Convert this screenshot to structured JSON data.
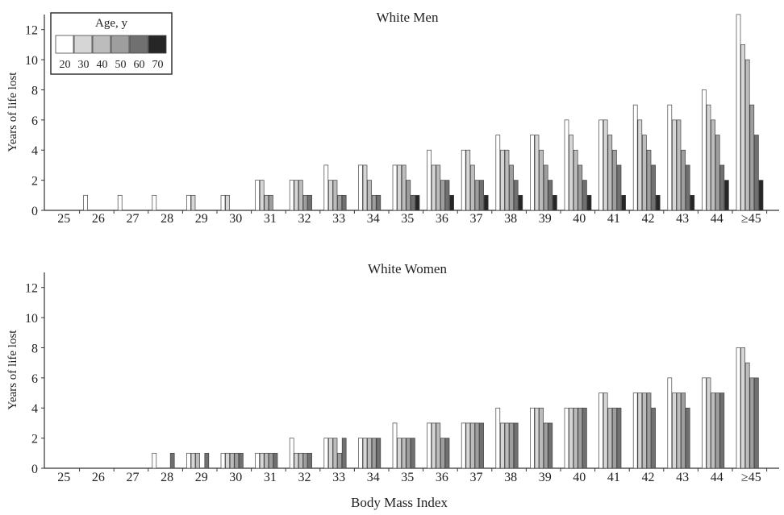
{
  "xlabel": "Body Mass Index",
  "ylabel": "Years of life lost",
  "legend": {
    "title": "Age, y",
    "labels": [
      "20",
      "30",
      "40",
      "50",
      "60",
      "70"
    ],
    "colors": [
      "#ffffff",
      "#d6d6d6",
      "#bcbcbc",
      "#9e9e9e",
      "#707070",
      "#262626"
    ]
  },
  "chart_data": [
    {
      "type": "bar",
      "title": "White Men",
      "xlabel": "",
      "ylabel": "Years of life lost",
      "ylim": [
        0,
        13
      ],
      "yticks": [
        0,
        2,
        4,
        6,
        8,
        10,
        12
      ],
      "categories": [
        "25",
        "26",
        "27",
        "28",
        "29",
        "30",
        "31",
        "32",
        "33",
        "34",
        "35",
        "36",
        "37",
        "38",
        "39",
        "40",
        "41",
        "42",
        "43",
        "44",
        "≥45"
      ],
      "series": [
        {
          "name": "20",
          "values": [
            0,
            1,
            1,
            1,
            1,
            1,
            2,
            2,
            3,
            3,
            3,
            4,
            4,
            5,
            5,
            6,
            6,
            7,
            7,
            8,
            13
          ]
        },
        {
          "name": "30",
          "values": [
            0,
            0,
            0,
            0,
            1,
            1,
            2,
            2,
            2,
            3,
            3,
            3,
            4,
            4,
            5,
            5,
            6,
            6,
            6,
            7,
            11
          ]
        },
        {
          "name": "40",
          "values": [
            0,
            0,
            0,
            0,
            0,
            0,
            1,
            2,
            2,
            2,
            3,
            3,
            3,
            4,
            4,
            4,
            5,
            5,
            6,
            6,
            10
          ]
        },
        {
          "name": "50",
          "values": [
            0,
            0,
            0,
            0,
            0,
            0,
            1,
            1,
            1,
            1,
            2,
            2,
            2,
            3,
            3,
            3,
            4,
            4,
            4,
            5,
            7
          ]
        },
        {
          "name": "60",
          "values": [
            0,
            0,
            0,
            0,
            0,
            0,
            0,
            1,
            1,
            1,
            1,
            2,
            2,
            2,
            2,
            2,
            3,
            3,
            3,
            3,
            5
          ]
        },
        {
          "name": "70",
          "values": [
            0,
            0,
            0,
            0,
            0,
            0,
            0,
            0,
            0,
            0,
            1,
            1,
            1,
            1,
            1,
            1,
            1,
            1,
            1,
            2,
            2
          ]
        }
      ]
    },
    {
      "type": "bar",
      "title": "White Women",
      "xlabel": "Body Mass Index",
      "ylabel": "Years of life lost",
      "ylim": [
        0,
        13
      ],
      "yticks": [
        0,
        2,
        4,
        6,
        8,
        10,
        12
      ],
      "categories": [
        "25",
        "26",
        "27",
        "28",
        "29",
        "30",
        "31",
        "32",
        "33",
        "34",
        "35",
        "36",
        "37",
        "38",
        "39",
        "40",
        "41",
        "42",
        "43",
        "44",
        "≥45"
      ],
      "series": [
        {
          "name": "20",
          "values": [
            0,
            0,
            0,
            1,
            1,
            1,
            1,
            2,
            2,
            2,
            3,
            3,
            3,
            4,
            4,
            4,
            5,
            5,
            6,
            6,
            8
          ]
        },
        {
          "name": "30",
          "values": [
            0,
            0,
            0,
            0,
            1,
            1,
            1,
            1,
            2,
            2,
            2,
            3,
            3,
            3,
            4,
            4,
            5,
            5,
            5,
            6,
            8
          ]
        },
        {
          "name": "40",
          "values": [
            0,
            0,
            0,
            0,
            1,
            1,
            1,
            1,
            2,
            2,
            2,
            3,
            3,
            3,
            4,
            4,
            4,
            5,
            5,
            5,
            7
          ]
        },
        {
          "name": "50",
          "values": [
            0,
            0,
            0,
            0,
            0,
            1,
            1,
            1,
            1,
            2,
            2,
            2,
            3,
            3,
            3,
            4,
            4,
            5,
            5,
            5,
            6
          ]
        },
        {
          "name": "60",
          "values": [
            0,
            0,
            0,
            1,
            1,
            1,
            1,
            1,
            2,
            2,
            2,
            2,
            3,
            3,
            3,
            4,
            4,
            4,
            4,
            5,
            6
          ]
        },
        {
          "name": "70",
          "values": [
            0,
            0,
            0,
            0,
            0,
            0,
            0,
            0,
            0,
            0,
            0,
            0,
            0,
            0,
            0,
            0,
            0,
            0,
            0,
            0,
            0
          ]
        }
      ]
    }
  ]
}
